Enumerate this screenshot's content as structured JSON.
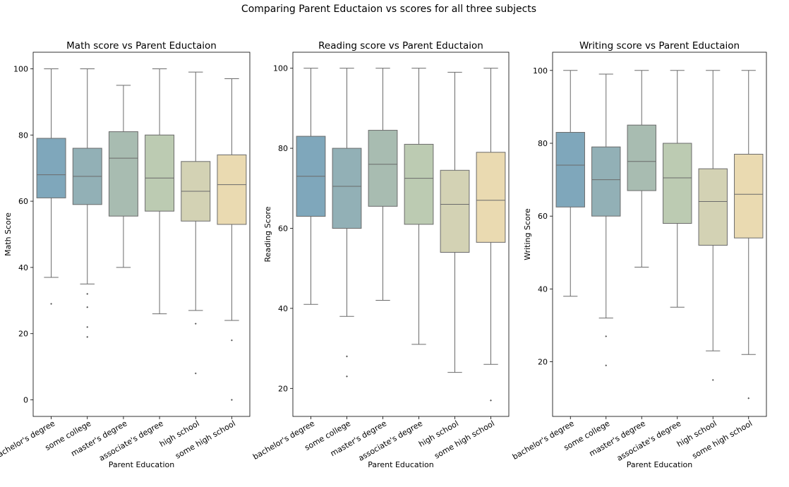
{
  "suptitle": "Comparing Parent Eductaion vs scores for all three subjects",
  "colors": {
    "bachelor's degree": "#7fa7bb",
    "some college": "#92b0b6",
    "master's degree": "#a8bcb1",
    "associate's degree": "#bccbb2",
    "high school": "#d3d2b4",
    "some high school": "#eadab1"
  },
  "chart_data": [
    {
      "type": "box",
      "title": "Math score vs Parent Eductaion",
      "xlabel": "Parent Education",
      "ylabel": "Math Score",
      "ylim": [
        -5,
        105
      ],
      "yticks": [
        0,
        20,
        40,
        60,
        80,
        100
      ],
      "categories": [
        "bachelor's degree",
        "some college",
        "master's degree",
        "associate's degree",
        "high school",
        "some high school"
      ],
      "boxes": [
        {
          "whislo": 37,
          "q1": 61,
          "med": 68,
          "q3": 79,
          "whishi": 100,
          "fliers": [
            29
          ]
        },
        {
          "whislo": 35,
          "q1": 59,
          "med": 67.5,
          "q3": 76,
          "whishi": 100,
          "fliers": [
            32,
            28,
            22,
            19
          ]
        },
        {
          "whislo": 40,
          "q1": 55.5,
          "med": 73,
          "q3": 81,
          "whishi": 95,
          "fliers": []
        },
        {
          "whislo": 26,
          "q1": 57,
          "med": 67,
          "q3": 80,
          "whishi": 100,
          "fliers": []
        },
        {
          "whislo": 27,
          "q1": 54,
          "med": 63,
          "q3": 72,
          "whishi": 99,
          "fliers": [
            23,
            8
          ]
        },
        {
          "whislo": 24,
          "q1": 53,
          "med": 65,
          "q3": 74,
          "whishi": 97,
          "fliers": [
            18,
            0
          ]
        }
      ]
    },
    {
      "type": "box",
      "title": "Reading score vs Parent Eductaion",
      "xlabel": "Parent Education",
      "ylabel": "Reading Score",
      "ylim": [
        13,
        104
      ],
      "yticks": [
        20,
        40,
        60,
        80,
        100
      ],
      "categories": [
        "bachelor's degree",
        "some college",
        "master's degree",
        "associate's degree",
        "high school",
        "some high school"
      ],
      "boxes": [
        {
          "whislo": 41,
          "q1": 63,
          "med": 73,
          "q3": 83,
          "whishi": 100,
          "fliers": []
        },
        {
          "whislo": 38,
          "q1": 60,
          "med": 70.5,
          "q3": 80,
          "whishi": 100,
          "fliers": [
            28,
            23
          ]
        },
        {
          "whislo": 42,
          "q1": 65.5,
          "med": 76,
          "q3": 84.5,
          "whishi": 100,
          "fliers": []
        },
        {
          "whislo": 31,
          "q1": 61,
          "med": 72.5,
          "q3": 81,
          "whishi": 100,
          "fliers": []
        },
        {
          "whislo": 24,
          "q1": 54,
          "med": 66,
          "q3": 74.5,
          "whishi": 99,
          "fliers": []
        },
        {
          "whislo": 26,
          "q1": 56.5,
          "med": 67,
          "q3": 79,
          "whishi": 100,
          "fliers": [
            17
          ]
        }
      ]
    },
    {
      "type": "box",
      "title": "Writing score vs Parent Eductaion",
      "xlabel": "Parent Education",
      "ylabel": "Writing Score",
      "ylim": [
        5,
        105
      ],
      "yticks": [
        20,
        40,
        60,
        80,
        100
      ],
      "categories": [
        "bachelor's degree",
        "some college",
        "master's degree",
        "associate's degree",
        "high school",
        "some high school"
      ],
      "boxes": [
        {
          "whislo": 38,
          "q1": 62.5,
          "med": 74,
          "q3": 83,
          "whishi": 100,
          "fliers": []
        },
        {
          "whislo": 32,
          "q1": 60,
          "med": 70,
          "q3": 79,
          "whishi": 99,
          "fliers": [
            27,
            19
          ]
        },
        {
          "whislo": 46,
          "q1": 67,
          "med": 75,
          "q3": 85,
          "whishi": 100,
          "fliers": []
        },
        {
          "whislo": 35,
          "q1": 58,
          "med": 70.5,
          "q3": 80,
          "whishi": 100,
          "fliers": []
        },
        {
          "whislo": 23,
          "q1": 52,
          "med": 64,
          "q3": 73,
          "whishi": 100,
          "fliers": [
            15
          ]
        },
        {
          "whislo": 22,
          "q1": 54,
          "med": 66,
          "q3": 77,
          "whishi": 100,
          "fliers": [
            10
          ]
        }
      ]
    }
  ]
}
